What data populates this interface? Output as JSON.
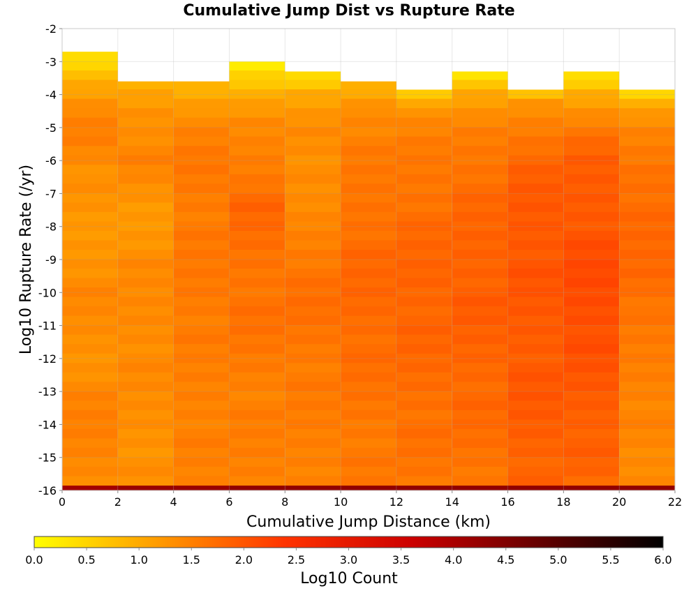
{
  "chart_data": {
    "type": "heatmap",
    "title": "Cumulative Jump Dist vs Rupture Rate",
    "xlabel": "Cumulative Jump Distance (km)",
    "ylabel": "Log10 Rupture Rate (/yr)",
    "xlim": [
      0,
      22
    ],
    "ylim": [
      -16,
      -2
    ],
    "x_ticks": [
      "0",
      "2",
      "4",
      "6",
      "8",
      "10",
      "12",
      "14",
      "16",
      "18",
      "20",
      "22"
    ],
    "y_ticks": [
      "-2",
      "-3",
      "-4",
      "-5",
      "-6",
      "-7",
      "-8",
      "-9",
      "-10",
      "-11",
      "-12",
      "-13",
      "-14",
      "-15",
      "-16"
    ],
    "x_bin_edges": [
      0,
      2,
      4,
      6,
      8,
      10,
      12,
      14,
      16,
      18,
      20,
      22
    ],
    "y_bin_width": 0.286,
    "grid": true,
    "colorbar": {
      "label": "Log10 Count",
      "range": [
        0,
        6
      ],
      "ticks": [
        "0.0",
        "0.5",
        "1.0",
        "1.5",
        "2.0",
        "2.5",
        "3.0",
        "3.5",
        "4.0",
        "4.5",
        "5.0",
        "5.5",
        "6.0"
      ],
      "colors": [
        "#ffff00",
        "#ff9900",
        "#ff3300",
        "#cc0000",
        "#660000",
        "#000000"
      ],
      "position": "bottom"
    },
    "columns": [
      {
        "x_range": [
          0,
          2
        ],
        "top_log_rate": -2.7,
        "bottom_log_count": 4.1,
        "profile": [
          [
            -2.7,
            0.3
          ],
          [
            -3.6,
            0.9
          ],
          [
            -4.5,
            1.4
          ],
          [
            -5.2,
            1.55
          ],
          [
            -6.5,
            1.3
          ],
          [
            -8.0,
            1.2
          ],
          [
            -10.0,
            1.4
          ],
          [
            -12.0,
            1.3
          ],
          [
            -14.0,
            1.5
          ],
          [
            -15.7,
            1.4
          ]
        ]
      },
      {
        "x_range": [
          2,
          4
        ],
        "top_log_rate": -3.6,
        "bottom_log_count": 4.2,
        "profile": [
          [
            -3.6,
            0.9
          ],
          [
            -4.5,
            1.3
          ],
          [
            -6.0,
            1.45
          ],
          [
            -7.5,
            1.2
          ],
          [
            -9.0,
            1.35
          ],
          [
            -11.0,
            1.4
          ],
          [
            -13.0,
            1.35
          ],
          [
            -15.7,
            1.3
          ]
        ]
      },
      {
        "x_range": [
          4,
          6
        ],
        "top_log_rate": -3.6,
        "bottom_log_count": 4.2,
        "profile": [
          [
            -3.6,
            0.8
          ],
          [
            -4.5,
            1.3
          ],
          [
            -6.0,
            1.6
          ],
          [
            -8.0,
            1.55
          ],
          [
            -10.0,
            1.6
          ],
          [
            -12.0,
            1.5
          ],
          [
            -14.0,
            1.5
          ],
          [
            -15.7,
            1.45
          ]
        ]
      },
      {
        "x_range": [
          6,
          8
        ],
        "top_log_rate": -3.0,
        "bottom_log_count": 4.3,
        "profile": [
          [
            -3.0,
            0.2
          ],
          [
            -3.8,
            0.85
          ],
          [
            -4.8,
            1.35
          ],
          [
            -6.5,
            1.6
          ],
          [
            -7.3,
            1.8
          ],
          [
            -9.0,
            1.65
          ],
          [
            -11.0,
            1.65
          ],
          [
            -13.0,
            1.5
          ],
          [
            -15.7,
            1.5
          ]
        ]
      },
      {
        "x_range": [
          8,
          10
        ],
        "top_log_rate": -3.3,
        "bottom_log_count": 4.3,
        "profile": [
          [
            -3.3,
            0.2
          ],
          [
            -4.0,
            1.0
          ],
          [
            -5.0,
            1.4
          ],
          [
            -7.0,
            1.3
          ],
          [
            -9.0,
            1.6
          ],
          [
            -10.5,
            1.7
          ],
          [
            -12.5,
            1.55
          ],
          [
            -15.7,
            1.5
          ]
        ]
      },
      {
        "x_range": [
          10,
          12
        ],
        "top_log_rate": -3.6,
        "bottom_log_count": 4.3,
        "profile": [
          [
            -3.6,
            0.8
          ],
          [
            -4.5,
            1.4
          ],
          [
            -6.0,
            1.55
          ],
          [
            -8.0,
            1.7
          ],
          [
            -10.0,
            1.8
          ],
          [
            -12.0,
            1.7
          ],
          [
            -14.0,
            1.6
          ],
          [
            -15.7,
            1.55
          ]
        ]
      },
      {
        "x_range": [
          12,
          14
        ],
        "top_log_rate": -3.85,
        "bottom_log_count": 4.3,
        "profile": [
          [
            -3.85,
            0.35
          ],
          [
            -4.3,
            1.2
          ],
          [
            -5.5,
            1.55
          ],
          [
            -7.5,
            1.7
          ],
          [
            -9.5,
            1.85
          ],
          [
            -11.5,
            1.8
          ],
          [
            -13.5,
            1.7
          ],
          [
            -15.7,
            1.6
          ]
        ]
      },
      {
        "x_range": [
          14,
          16
        ],
        "top_log_rate": -3.3,
        "bottom_log_count": 4.3,
        "profile": [
          [
            -3.3,
            0.3
          ],
          [
            -4.0,
            1.0
          ],
          [
            -5.0,
            1.5
          ],
          [
            -6.5,
            1.7
          ],
          [
            -8.5,
            1.85
          ],
          [
            -10.5,
            1.9
          ],
          [
            -12.5,
            1.8
          ],
          [
            -14.5,
            1.7
          ],
          [
            -15.7,
            1.6
          ]
        ]
      },
      {
        "x_range": [
          16,
          18
        ],
        "top_log_rate": -3.85,
        "bottom_log_count": 4.3,
        "profile": [
          [
            -3.85,
            0.55
          ],
          [
            -4.3,
            1.3
          ],
          [
            -5.5,
            1.7
          ],
          [
            -7.0,
            1.95
          ],
          [
            -9.0,
            2.0
          ],
          [
            -11.0,
            1.95
          ],
          [
            -13.5,
            1.95
          ],
          [
            -15.7,
            1.8
          ]
        ]
      },
      {
        "x_range": [
          18,
          20
        ],
        "top_log_rate": -3.3,
        "bottom_log_count": 4.3,
        "profile": [
          [
            -3.3,
            0.2
          ],
          [
            -4.0,
            1.0
          ],
          [
            -4.8,
            1.5
          ],
          [
            -6.0,
            1.9
          ],
          [
            -8.0,
            2.0
          ],
          [
            -9.5,
            2.15
          ],
          [
            -11.0,
            2.1
          ],
          [
            -13.0,
            1.95
          ],
          [
            -15.0,
            1.85
          ],
          [
            -15.7,
            1.75
          ]
        ]
      },
      {
        "x_range": [
          20,
          22
        ],
        "top_log_rate": -3.85,
        "bottom_log_count": 4.3,
        "profile": [
          [
            -3.85,
            0.4
          ],
          [
            -4.3,
            1.0
          ],
          [
            -5.0,
            1.4
          ],
          [
            -6.5,
            1.7
          ],
          [
            -8.0,
            1.75
          ],
          [
            -9.5,
            1.8
          ],
          [
            -11.0,
            1.55
          ],
          [
            -13.0,
            1.5
          ],
          [
            -15.0,
            1.35
          ],
          [
            -15.7,
            1.4
          ]
        ]
      }
    ]
  }
}
